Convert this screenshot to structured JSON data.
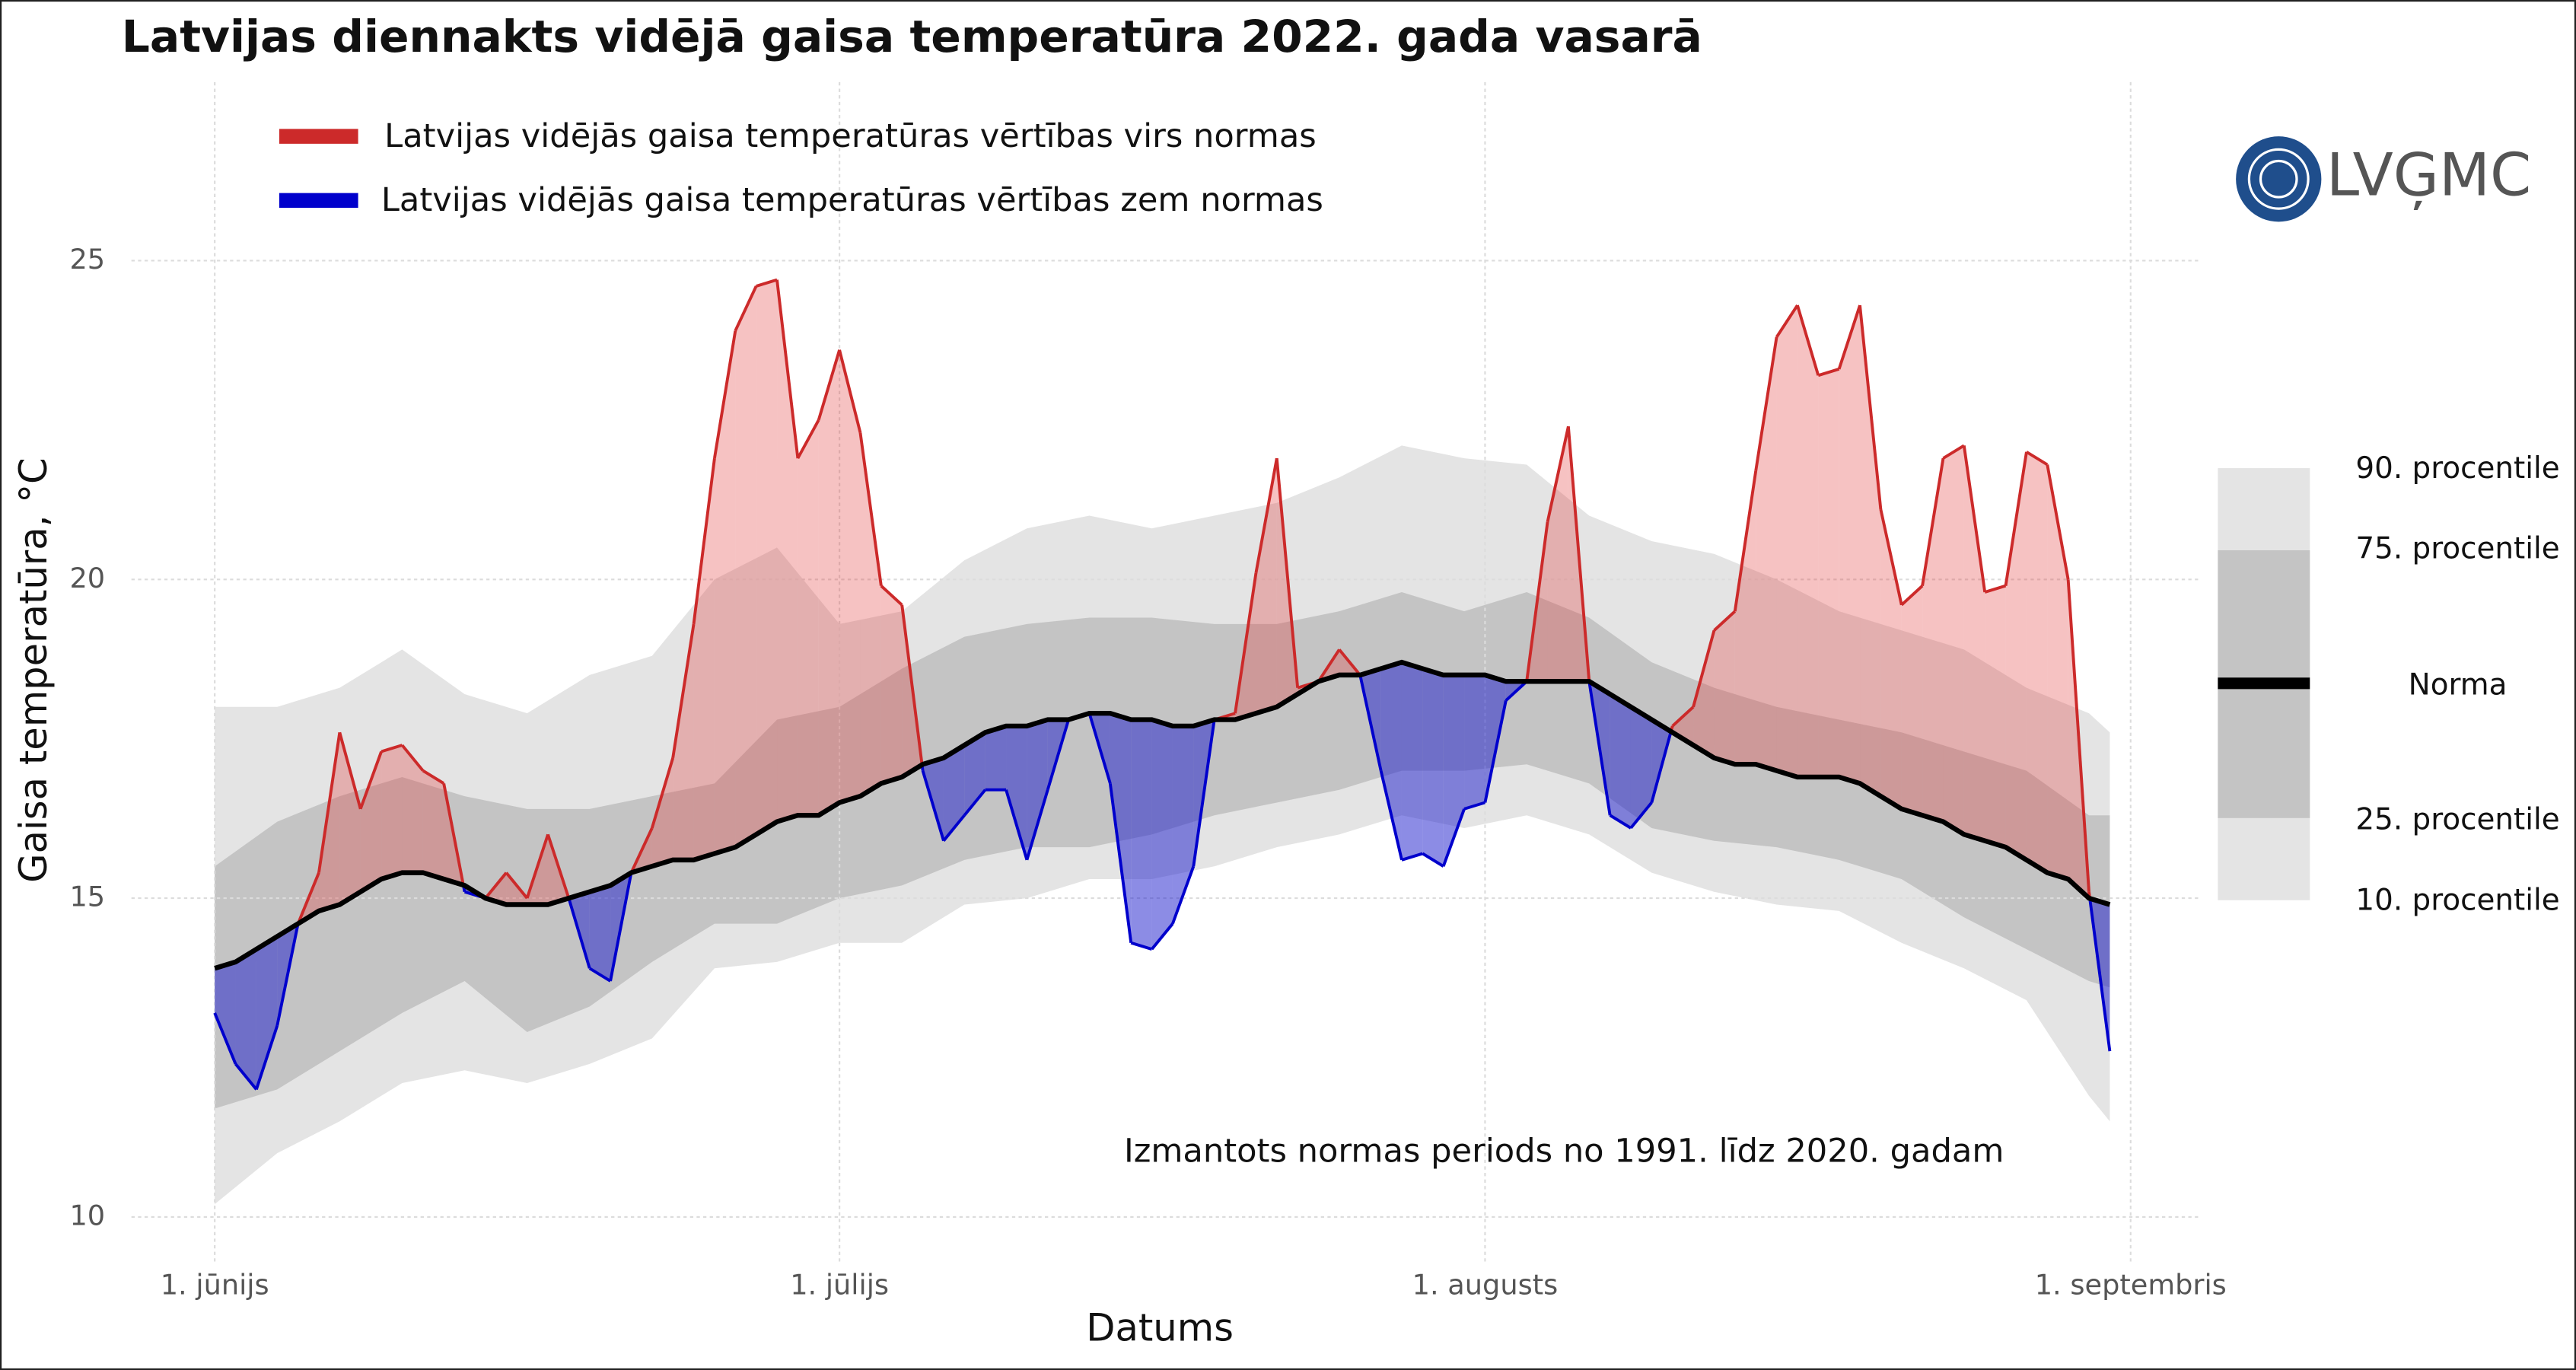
{
  "chart_data": {
    "type": "band_line",
    "title": "Latvijas diennakts vidējā gaisa temperatūra 2022. gada vasarā",
    "xlabel": "Datums",
    "ylabel": "Gaisa temperatūra, °C",
    "note": "Izmantots normas periods no 1991. līdz 2020. gadam",
    "logo": "LVĢMC",
    "xlim": [
      -4,
      95.4
    ],
    "ylim": [
      9.3,
      27.8
    ],
    "xticks": [
      {
        "value": 0,
        "label": "1. jūnijs"
      },
      {
        "value": 30,
        "label": "1. jūlijs"
      },
      {
        "value": 61,
        "label": "1. augusts"
      },
      {
        "value": 92,
        "label": "1. septembris"
      }
    ],
    "yticks": [
      10,
      15,
      20,
      25
    ],
    "grid": true,
    "x": [
      0,
      1,
      2,
      3,
      4,
      5,
      6,
      7,
      8,
      9,
      10,
      11,
      12,
      13,
      14,
      15,
      16,
      17,
      18,
      19,
      20,
      21,
      22,
      23,
      24,
      25,
      26,
      27,
      28,
      29,
      30,
      31,
      32,
      33,
      34,
      35,
      36,
      37,
      38,
      39,
      40,
      41,
      42,
      43,
      44,
      45,
      46,
      47,
      48,
      49,
      50,
      51,
      52,
      53,
      54,
      55,
      56,
      57,
      58,
      59,
      60,
      61,
      62,
      63,
      64,
      65,
      66,
      67,
      68,
      69,
      70,
      71,
      72,
      73,
      74,
      75,
      76,
      77,
      78,
      79,
      80,
      81,
      82,
      83,
      84,
      85,
      86,
      87,
      88,
      89,
      90,
      91
    ],
    "temperature": [
      13.2,
      12.4,
      12.0,
      13.0,
      14.6,
      15.4,
      17.6,
      16.4,
      17.3,
      17.4,
      17.0,
      16.8,
      15.1,
      15.0,
      15.4,
      15.0,
      16.0,
      15.0,
      13.9,
      13.7,
      15.4,
      16.1,
      17.2,
      19.3,
      21.9,
      23.9,
      24.6,
      24.7,
      21.9,
      22.5,
      23.6,
      22.3,
      19.9,
      19.6,
      17.0,
      15.9,
      16.3,
      16.7,
      16.7,
      15.6,
      16.7,
      17.8,
      17.9,
      16.8,
      14.3,
      14.2,
      14.6,
      15.5,
      17.8,
      17.9,
      20.1,
      21.9,
      18.3,
      18.4,
      18.9,
      18.5,
      17.0,
      15.6,
      15.7,
      15.5,
      16.4,
      16.5,
      18.1,
      18.4,
      20.9,
      22.4,
      18.4,
      16.3,
      16.1,
      16.5,
      17.7,
      18.0,
      19.2,
      19.5,
      21.7,
      23.8,
      24.3,
      23.2,
      23.3,
      24.3,
      21.1,
      19.6,
      19.9,
      21.9,
      22.1,
      19.8,
      19.9,
      22.0,
      21.8,
      20.0,
      15.1,
      12.6
    ],
    "above": {
      "label": "Latvijas vidējās gaisa temperatūras vērtības virs normas",
      "color": "#cc2a2a",
      "fill": "#e03535"
    },
    "below": {
      "label": "Latvijas vidējās gaisa temperatūras vērtības zem normas",
      "color": "#0000cc",
      "fill": "#1a1acc"
    },
    "norma": {
      "label": "Norma",
      "color": "#000000",
      "values": [
        13.9,
        14.0,
        14.2,
        14.4,
        14.6,
        14.8,
        14.9,
        15.1,
        15.3,
        15.4,
        15.4,
        15.3,
        15.2,
        15.0,
        14.9,
        14.9,
        14.9,
        15.0,
        15.1,
        15.2,
        15.4,
        15.5,
        15.6,
        15.6,
        15.7,
        15.8,
        16.0,
        16.2,
        16.3,
        16.3,
        16.5,
        16.6,
        16.8,
        16.9,
        17.1,
        17.2,
        17.4,
        17.6,
        17.7,
        17.7,
        17.8,
        17.8,
        17.9,
        17.9,
        17.8,
        17.8,
        17.7,
        17.7,
        17.8,
        17.8,
        17.9,
        18.0,
        18.2,
        18.4,
        18.5,
        18.5,
        18.6,
        18.7,
        18.6,
        18.5,
        18.5,
        18.5,
        18.4,
        18.4,
        18.4,
        18.4,
        18.4,
        18.2,
        18.0,
        17.8,
        17.6,
        17.4,
        17.2,
        17.1,
        17.1,
        17.0,
        16.9,
        16.9,
        16.9,
        16.8,
        16.6,
        16.4,
        16.3,
        16.2,
        16.0,
        15.9,
        15.8,
        15.6,
        15.4,
        15.3,
        15.0,
        14.9
      ]
    },
    "bands_x": [
      0,
      3,
      6,
      9,
      12,
      15,
      18,
      21,
      24,
      27,
      30,
      33,
      36,
      39,
      42,
      45,
      48,
      51,
      54,
      57,
      60,
      63,
      66,
      69,
      72,
      75,
      78,
      81,
      84,
      87,
      90,
      91
    ],
    "percentiles": [
      {
        "label": "10. procentile",
        "values": [
          10.2,
          11.0,
          11.5,
          12.1,
          12.3,
          12.1,
          12.4,
          12.8,
          13.9,
          14.0,
          14.3,
          14.3,
          14.9,
          15.0,
          15.3,
          15.3,
          15.5,
          15.8,
          16.0,
          16.3,
          16.1,
          16.3,
          16.0,
          15.4,
          15.1,
          14.9,
          14.8,
          14.3,
          13.9,
          13.4,
          11.9,
          11.5
        ]
      },
      {
        "label": "25. procentile",
        "values": [
          11.7,
          12.0,
          12.6,
          13.2,
          13.7,
          12.9,
          13.3,
          14.0,
          14.6,
          14.6,
          15.0,
          15.2,
          15.6,
          15.8,
          15.8,
          16.0,
          16.3,
          16.5,
          16.7,
          17.0,
          17.0,
          17.1,
          16.8,
          16.1,
          15.9,
          15.8,
          15.6,
          15.3,
          14.7,
          14.2,
          13.7,
          13.6
        ]
      },
      {
        "label": "75. procentile",
        "values": [
          15.5,
          16.2,
          16.6,
          16.9,
          16.6,
          16.4,
          16.4,
          16.6,
          16.8,
          17.8,
          18.0,
          18.6,
          19.1,
          19.3,
          19.4,
          19.4,
          19.3,
          19.3,
          19.5,
          19.8,
          19.5,
          19.8,
          19.4,
          18.7,
          18.3,
          18.0,
          17.8,
          17.6,
          17.3,
          17.0,
          16.3,
          16.3
        ]
      },
      {
        "label": "90. procentile",
        "values": [
          18.0,
          18.0,
          18.3,
          18.9,
          18.2,
          17.9,
          18.5,
          18.8,
          20.0,
          20.5,
          19.3,
          19.5,
          20.3,
          20.8,
          21.0,
          20.8,
          21.0,
          21.2,
          21.6,
          22.1,
          21.9,
          21.8,
          21.0,
          20.6,
          20.4,
          20.0,
          19.5,
          19.2,
          18.9,
          18.3,
          17.9,
          17.6
        ]
      }
    ],
    "band_colors": [
      "#e4e4e4",
      "#c4c4c4"
    ]
  }
}
